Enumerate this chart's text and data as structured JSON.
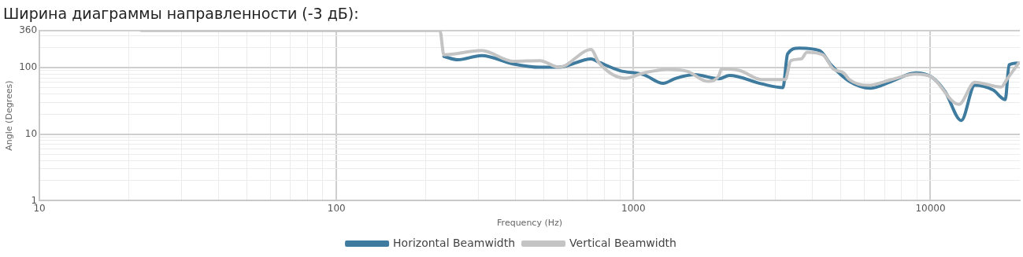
{
  "chart_data": {
    "type": "line",
    "title": "Ширина диаграммы направленности (-3 дБ):",
    "xlabel": "Frequency (Hz)",
    "ylabel": "Angle (Degrees)",
    "log": "xy",
    "xlim": [
      10,
      20000
    ],
    "xticks": [
      10,
      100,
      1000,
      10000
    ],
    "ylim": [
      1,
      360
    ],
    "yticks": [
      1,
      10,
      100,
      360
    ],
    "grid": true,
    "legend": "bottom",
    "marker": "none",
    "line_style": "solid",
    "series": [
      {
        "name": "Horizontal Beamwidth",
        "color": "#3e7b9e",
        "x": [
          230,
          256,
          308,
          395,
          484,
          562,
          720,
          766,
          900,
          1084,
          1259,
          1390,
          1611,
          1941,
          2104,
          2698,
          3186,
          3304,
          3606,
          4236,
          4623,
          5333,
          6297,
          7396,
          8913,
          10092,
          11220,
          12700,
          14100,
          16260,
          17860,
          18400,
          19820
        ],
        "values": [
          147,
          131,
          151,
          113,
          101,
          101,
          135,
          120,
          90,
          78,
          58,
          69,
          78,
          68,
          76,
          57,
          50,
          160,
          196,
          180,
          110,
          62,
          49,
          62,
          83,
          72,
          43,
          16,
          54,
          46,
          33,
          110,
          117
        ]
      },
      {
        "name": "Vertical Beamwidth",
        "color": "#c4c4c4",
        "x": [
          22,
          223,
          230,
          308,
          395,
          484,
          562,
          720,
          766,
          940,
          1084,
          1306,
          1514,
          1778,
          1941,
          1977,
          2280,
          2698,
          3245,
          3388,
          3673,
          3837,
          4345,
          4710,
          5105,
          5333,
          6151,
          7396,
          8913,
          10092,
          12470,
          14100,
          17300,
          18070,
          19820
        ],
        "values": [
          360,
          360,
          155,
          180,
          124,
          127,
          101,
          186,
          117,
          69,
          83,
          93,
          88,
          62,
          76,
          95,
          90,
          66,
          66,
          127,
          135,
          170,
          155,
          95,
          83,
          66,
          54,
          66,
          80,
          72,
          28,
          60,
          51,
          66,
          117
        ]
      }
    ]
  }
}
